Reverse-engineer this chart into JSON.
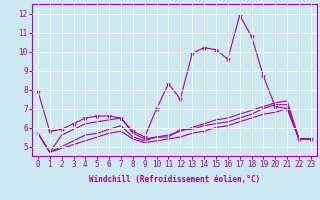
{
  "title": "",
  "xlabel": "Windchill (Refroidissement éolien,°C)",
  "ylabel": "",
  "background_color": "#cce8f0",
  "line_color": "#aa00aa",
  "xlim": [
    -0.5,
    23.5
  ],
  "ylim": [
    4.5,
    12.5
  ],
  "yticks": [
    5,
    6,
    7,
    8,
    9,
    10,
    11,
    12
  ],
  "xticks": [
    0,
    1,
    2,
    3,
    4,
    5,
    6,
    7,
    8,
    9,
    10,
    11,
    12,
    13,
    14,
    15,
    16,
    17,
    18,
    19,
    20,
    21,
    22,
    23
  ],
  "series": [
    {
      "x": [
        0,
        1,
        2,
        3,
        4,
        5,
        6,
        7,
        8,
        9,
        10,
        11,
        12,
        13,
        14,
        15,
        16,
        17,
        18,
        19,
        20,
        21,
        22,
        23
      ],
      "y": [
        7.9,
        5.8,
        5.9,
        6.2,
        6.5,
        6.6,
        6.6,
        6.5,
        5.8,
        5.5,
        7.0,
        8.3,
        7.5,
        9.9,
        10.2,
        10.1,
        9.6,
        11.9,
        10.8,
        8.7,
        7.1,
        7.0,
        5.4,
        5.4
      ],
      "marker": true
    },
    {
      "x": [
        0,
        1,
        2,
        3,
        4,
        5,
        6,
        7,
        8,
        9,
        10,
        11,
        12,
        13,
        14,
        15,
        16,
        17,
        18,
        19,
        20,
        21,
        22,
        23
      ],
      "y": [
        5.7,
        4.7,
        5.6,
        5.9,
        6.2,
        6.3,
        6.4,
        6.5,
        5.7,
        5.4,
        5.5,
        5.5,
        5.9,
        5.9,
        6.1,
        6.2,
        6.3,
        6.5,
        6.7,
        7.0,
        7.2,
        7.2,
        5.4,
        5.4
      ],
      "marker": false
    },
    {
      "x": [
        0,
        1,
        2,
        3,
        4,
        5,
        6,
        7,
        8,
        9,
        10,
        11,
        12,
        13,
        14,
        15,
        16,
        17,
        18,
        19,
        20,
        21,
        22,
        23
      ],
      "y": [
        5.7,
        4.7,
        5.0,
        5.3,
        5.6,
        5.7,
        5.9,
        6.1,
        5.5,
        5.3,
        5.5,
        5.6,
        5.8,
        6.0,
        6.2,
        6.4,
        6.5,
        6.7,
        6.9,
        7.1,
        7.3,
        7.4,
        5.4,
        5.4
      ],
      "marker": false
    },
    {
      "x": [
        0,
        1,
        2,
        3,
        4,
        5,
        6,
        7,
        8,
        9,
        10,
        11,
        12,
        13,
        14,
        15,
        16,
        17,
        18,
        19,
        20,
        21,
        22,
        23
      ],
      "y": [
        5.7,
        4.7,
        4.9,
        5.1,
        5.3,
        5.5,
        5.7,
        5.8,
        5.4,
        5.2,
        5.3,
        5.4,
        5.5,
        5.7,
        5.8,
        6.0,
        6.1,
        6.3,
        6.5,
        6.7,
        6.8,
        7.0,
        5.4,
        5.4
      ],
      "marker": false
    }
  ],
  "xlabel_fontsize": 5.5,
  "tick_fontsize": 5.5,
  "grid_color": "#ffffff",
  "grid_linewidth": 0.6
}
